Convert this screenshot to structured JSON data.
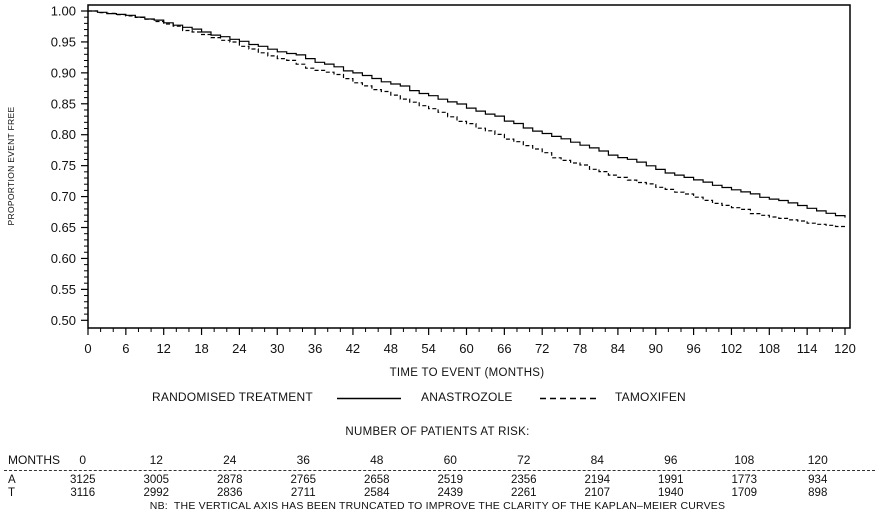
{
  "figure": {
    "note": "NB:  THE VERTICAL AXIS HAS BEEN TRUNCATED TO IMPROVE THE CLARITY OF THE KAPLAN–MEIER CURVES",
    "background": "#ffffff"
  },
  "chart_data": {
    "type": "line",
    "chart_style": "kaplan-meier-step",
    "title": "",
    "xlabel": "TIME TO EVENT (MONTHS)",
    "ylabel": "PROPORTION EVENT FREE",
    "xlim": [
      0,
      120
    ],
    "ylim": [
      0.5,
      1.0
    ],
    "y_axis_truncated": true,
    "grid": false,
    "x_major_ticks": [
      0,
      6,
      12,
      18,
      24,
      30,
      36,
      42,
      48,
      54,
      60,
      66,
      72,
      78,
      84,
      90,
      96,
      102,
      108,
      114,
      120
    ],
    "x_minor_tick_step": 2,
    "y_major_tick_labels": [
      "1.00",
      "0.95",
      "0.90",
      "0.85",
      "0.80",
      "0.75",
      "0.70",
      "0.65",
      "0.60",
      "0.55",
      "0.50"
    ],
    "y_minor_tick_step": 0.01,
    "legend": {
      "title": "RANDOMISED TREATMENT",
      "position": "below-axis",
      "entries": [
        {
          "label": "ANASTROZOLE",
          "line_style": "solid",
          "color": "#000000"
        },
        {
          "label": "TAMOXIFEN",
          "line_style": "dashed",
          "color": "#000000"
        }
      ]
    },
    "x": [
      0,
      6,
      12,
      18,
      24,
      30,
      36,
      42,
      48,
      54,
      60,
      66,
      72,
      78,
      84,
      90,
      96,
      102,
      108,
      114,
      120
    ],
    "series": [
      {
        "name": "ANASTROZOLE",
        "line_style": "solid",
        "values": [
          1.0,
          0.993,
          0.981,
          0.966,
          0.951,
          0.934,
          0.917,
          0.9,
          0.882,
          0.863,
          0.843,
          0.822,
          0.802,
          0.783,
          0.763,
          0.744,
          0.727,
          0.711,
          0.696,
          0.681,
          0.666
        ]
      },
      {
        "name": "TAMOXIFEN",
        "line_style": "dashed",
        "values": [
          1.0,
          0.992,
          0.979,
          0.962,
          0.943,
          0.923,
          0.904,
          0.884,
          0.864,
          0.842,
          0.818,
          0.793,
          0.771,
          0.751,
          0.731,
          0.715,
          0.699,
          0.682,
          0.667,
          0.657,
          0.649
        ]
      }
    ]
  },
  "risk_table": {
    "title": "NUMBER OF PATIENTS AT RISK:",
    "row_header": "MONTHS",
    "months": [
      0,
      12,
      24,
      36,
      48,
      60,
      72,
      84,
      96,
      108,
      120
    ],
    "rows": [
      {
        "label": "A",
        "values": [
          3125,
          3005,
          2878,
          2765,
          2658,
          2519,
          2356,
          2194,
          1991,
          1773,
          934
        ]
      },
      {
        "label": "T",
        "values": [
          3116,
          2992,
          2836,
          2711,
          2584,
          2439,
          2261,
          2107,
          1940,
          1709,
          898
        ]
      }
    ]
  },
  "colors": {
    "ink": "#000000",
    "text": "#111111",
    "background": "#ffffff"
  }
}
